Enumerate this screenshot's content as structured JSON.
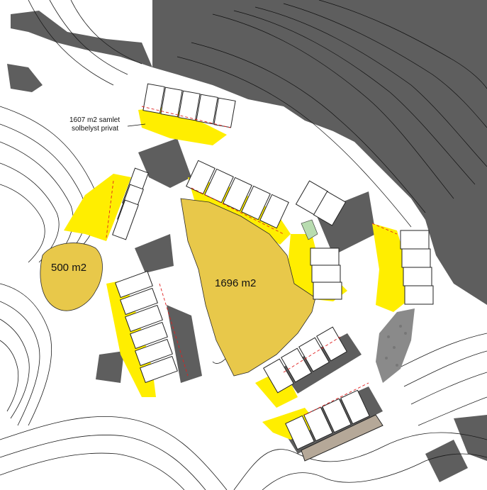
{
  "map": {
    "annotations": {
      "callout_line1": "1607 m2 samlet",
      "callout_line2": "solbelyst privat",
      "area_west": "500 m2",
      "area_center": "1696 m2"
    },
    "colors": {
      "sunlit_yellow": "#ffee00",
      "sunlit_ochre": "#e8c84a",
      "shadow": "#5e5e5e",
      "building": "#ffffff",
      "contour": "#1a1a1a",
      "property_line": "#e02020",
      "green_patch": "#b8dcb0",
      "terrace_brown": "#b5a898"
    },
    "legend_present": false
  }
}
